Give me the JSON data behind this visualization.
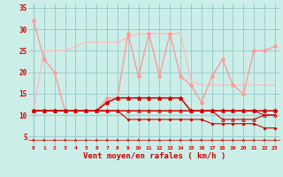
{
  "xlabel": "Vent moyen/en rafales ( km/h )",
  "background_color": "#cceee8",
  "grid_color": "#99cccc",
  "x_hours": [
    0,
    1,
    2,
    3,
    4,
    5,
    6,
    7,
    8,
    9,
    10,
    11,
    12,
    13,
    14,
    15,
    16,
    17,
    18,
    19,
    20,
    21,
    22,
    23
  ],
  "ylim": [
    3,
    36
  ],
  "yticks": [
    5,
    10,
    15,
    20,
    25,
    30,
    35
  ],
  "line_gust": [
    32,
    23,
    20,
    11,
    11,
    11,
    11,
    14,
    14,
    29,
    19,
    29,
    19,
    29,
    19,
    17,
    13,
    19,
    23,
    17,
    15,
    25,
    25,
    26
  ],
  "line_stat1": [
    11,
    25,
    25,
    25,
    26,
    27,
    27,
    27,
    27,
    28,
    29,
    29,
    29,
    29,
    29,
    18,
    17,
    17,
    17,
    17,
    17,
    17,
    17,
    17
  ],
  "line_avg": [
    11,
    11,
    11,
    11,
    11,
    11,
    11,
    13,
    14,
    14,
    14,
    14,
    14,
    14,
    14,
    11,
    11,
    11,
    11,
    11,
    11,
    11,
    11,
    11
  ],
  "line_stat2": [
    11,
    11,
    11,
    11,
    11,
    11,
    11,
    11,
    11,
    11,
    11,
    11,
    11,
    11,
    11,
    11,
    11,
    11,
    11,
    11,
    11,
    11,
    10,
    10
  ],
  "line_stat3": [
    11,
    11,
    11,
    11,
    11,
    11,
    11,
    11,
    11,
    9,
    9,
    9,
    9,
    9,
    9,
    9,
    9,
    8,
    8,
    8,
    8,
    8,
    7,
    7
  ],
  "line_stat4": [
    11,
    11,
    11,
    11,
    11,
    11,
    11,
    11,
    11,
    11,
    11,
    11,
    11,
    11,
    11,
    11,
    11,
    11,
    9,
    9,
    9,
    9,
    10,
    10
  ],
  "arrows_y": [
    3.8,
    3.8,
    3.8,
    3.8,
    3.8,
    3.8,
    3.8,
    3.8,
    3.8,
    3.8,
    3.8,
    3.8,
    3.8,
    3.8,
    3.8,
    3.8,
    3.8,
    3.8,
    3.8,
    3.8,
    3.8,
    3.8,
    3.8,
    3.8
  ],
  "gust_color": "#ff9999",
  "stat1_color": "#ffbbbb",
  "avg_color": "#cc0000",
  "stat2_color": "#cc0000",
  "stat3_color": "#cc0000",
  "stat4_color": "#cc0000",
  "arrow_color": "#cc0000",
  "tick_color": "#cc0000",
  "label_color": "#cc0000",
  "vline_color": "#888888"
}
